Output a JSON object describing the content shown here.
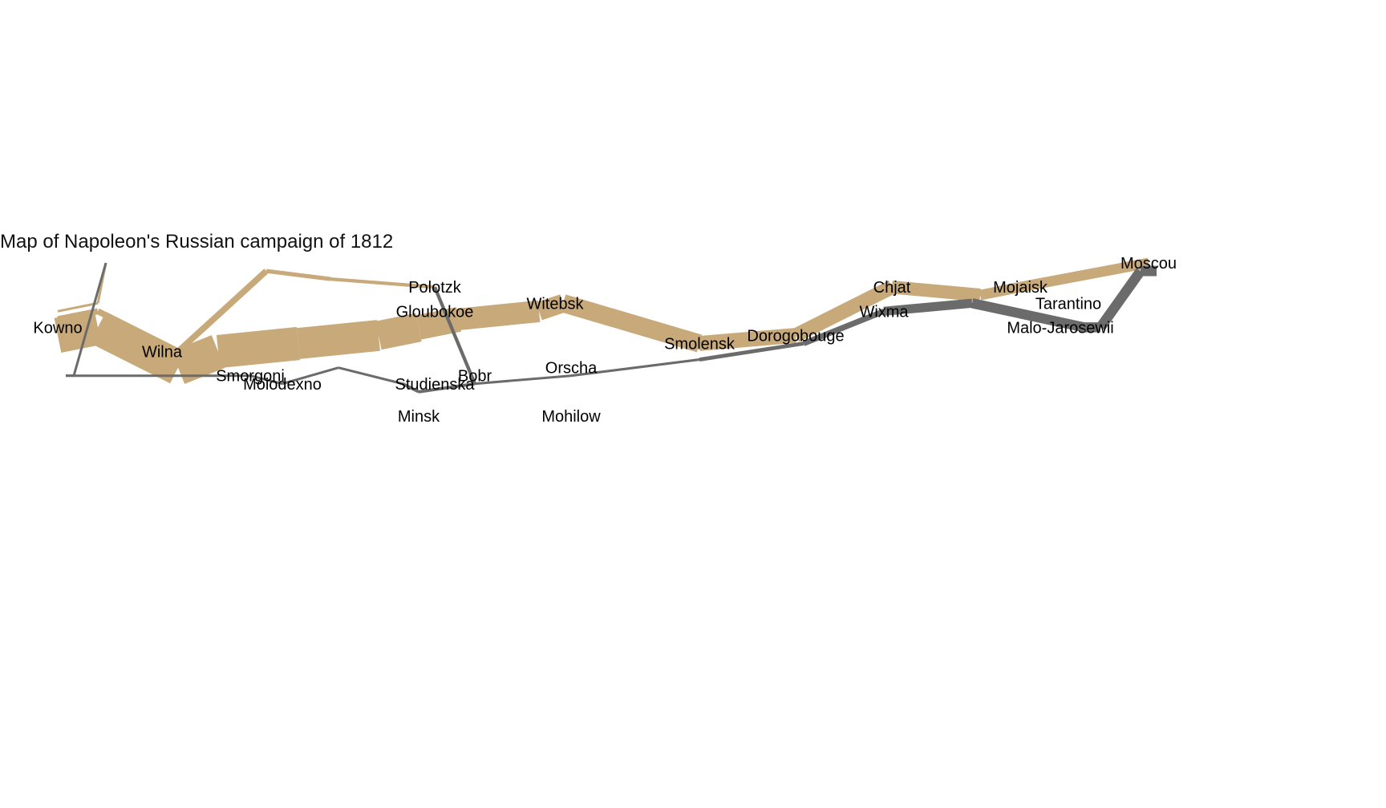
{
  "title": "Map of Napoleon's Russian campaign of 1812",
  "colors": {
    "advance": "#c8a97a",
    "retreat": "#6b6b6b"
  },
  "chart_data": {
    "type": "flow-map",
    "title": "Map of Napoleon's Russian campaign of 1812",
    "cities": [
      {
        "name": "Kowno",
        "lon": 24.0,
        "lat": 55.0
      },
      {
        "name": "Wilna",
        "lon": 25.3,
        "lat": 54.7
      },
      {
        "name": "Smorgoni",
        "lon": 26.4,
        "lat": 54.4
      },
      {
        "name": "Moiodexno",
        "lon": 26.8,
        "lat": 54.3
      },
      {
        "name": "Gloubokoe",
        "lon": 28.7,
        "lat": 55.2
      },
      {
        "name": "Minsk",
        "lon": 28.5,
        "lat": 53.9
      },
      {
        "name": "Studienska",
        "lon": 28.7,
        "lat": 54.3
      },
      {
        "name": "Polotzk",
        "lon": 28.7,
        "lat": 55.5
      },
      {
        "name": "Bobr",
        "lon": 29.2,
        "lat": 54.4
      },
      {
        "name": "Witebsk",
        "lon": 30.2,
        "lat": 55.3
      },
      {
        "name": "Orscha",
        "lon": 30.4,
        "lat": 54.5
      },
      {
        "name": "Mohilow",
        "lon": 30.4,
        "lat": 53.9
      },
      {
        "name": "Smolensk",
        "lon": 32.0,
        "lat": 54.8
      },
      {
        "name": "Dorogobouge",
        "lon": 33.2,
        "lat": 54.9
      },
      {
        "name": "Wixma",
        "lon": 34.3,
        "lat": 55.2
      },
      {
        "name": "Chjat",
        "lon": 34.4,
        "lat": 55.5
      },
      {
        "name": "Mojaisk",
        "lon": 36.0,
        "lat": 55.5
      },
      {
        "name": "Moscou",
        "lon": 37.6,
        "lat": 55.8
      },
      {
        "name": "Tarantino",
        "lon": 36.6,
        "lat": 55.3
      },
      {
        "name": "Malo-Jarosewii",
        "lon": 36.5,
        "lat": 55.0
      }
    ],
    "series": [
      {
        "group": 1,
        "direction": "A",
        "points": [
          {
            "lon": 24.0,
            "lat": 54.9,
            "survivors": 340000
          },
          {
            "lon": 24.5,
            "lat": 55.0,
            "survivors": 340000
          },
          {
            "lon": 25.5,
            "lat": 54.5,
            "survivors": 340000
          },
          {
            "lon": 26.0,
            "lat": 54.7,
            "survivors": 320000
          },
          {
            "lon": 27.0,
            "lat": 54.8,
            "survivors": 300000
          },
          {
            "lon": 28.0,
            "lat": 54.9,
            "survivors": 280000
          },
          {
            "lon": 28.5,
            "lat": 55.0,
            "survivors": 240000
          },
          {
            "lon": 29.0,
            "lat": 55.1,
            "survivors": 210000
          },
          {
            "lon": 30.0,
            "lat": 55.2,
            "survivors": 180000
          },
          {
            "lon": 30.3,
            "lat": 55.3,
            "survivors": 175000
          },
          {
            "lon": 32.0,
            "lat": 54.8,
            "survivors": 145000
          },
          {
            "lon": 33.2,
            "lat": 54.9,
            "survivors": 140000
          },
          {
            "lon": 34.4,
            "lat": 55.5,
            "survivors": 127100
          },
          {
            "lon": 35.5,
            "lat": 55.4,
            "survivors": 100000
          },
          {
            "lon": 36.0,
            "lat": 55.5,
            "survivors": 100000
          },
          {
            "lon": 37.6,
            "lat": 55.8,
            "survivors": 100000
          }
        ]
      },
      {
        "group": 1,
        "direction": "R",
        "points": [
          {
            "lon": 37.7,
            "lat": 55.7,
            "survivors": 100000
          },
          {
            "lon": 37.5,
            "lat": 55.7,
            "survivors": 98000
          },
          {
            "lon": 37.0,
            "lat": 55.0,
            "survivors": 97000
          },
          {
            "lon": 36.8,
            "lat": 55.0,
            "survivors": 96000
          },
          {
            "lon": 35.4,
            "lat": 55.3,
            "survivors": 87000
          },
          {
            "lon": 34.3,
            "lat": 55.2,
            "survivors": 55000
          },
          {
            "lon": 33.3,
            "lat": 54.8,
            "survivors": 37000
          },
          {
            "lon": 32.0,
            "lat": 54.6,
            "survivors": 24000
          },
          {
            "lon": 30.4,
            "lat": 54.4,
            "survivors": 20000
          },
          {
            "lon": 29.2,
            "lat": 54.3,
            "survivors": 20000
          },
          {
            "lon": 28.5,
            "lat": 54.2,
            "survivors": 20000
          },
          {
            "lon": 28.3,
            "lat": 54.3,
            "survivors": 20000
          },
          {
            "lon": 27.5,
            "lat": 54.5,
            "survivors": 20000
          },
          {
            "lon": 26.8,
            "lat": 54.3,
            "survivors": 12000
          },
          {
            "lon": 26.4,
            "lat": 54.4,
            "survivors": 14000
          },
          {
            "lon": 24.6,
            "lat": 54.4,
            "survivors": 8000
          },
          {
            "lon": 24.4,
            "lat": 54.4,
            "survivors": 4000
          },
          {
            "lon": 24.2,
            "lat": 54.4,
            "survivors": 4000
          },
          {
            "lon": 24.1,
            "lat": 54.4,
            "survivors": 4000
          }
        ]
      },
      {
        "group": 2,
        "direction": "A",
        "points": [
          {
            "lon": 24.0,
            "lat": 55.1,
            "survivors": 60000
          },
          {
            "lon": 24.5,
            "lat": 55.2,
            "survivors": 60000
          },
          {
            "lon": 25.5,
            "lat": 54.7,
            "survivors": 60000
          },
          {
            "lon": 26.6,
            "lat": 55.7,
            "survivors": 40000
          },
          {
            "lon": 27.4,
            "lat": 55.6,
            "survivors": 33000
          },
          {
            "lon": 28.7,
            "lat": 55.5,
            "survivors": 33000
          }
        ]
      },
      {
        "group": 2,
        "direction": "R",
        "points": [
          {
            "lon": 28.7,
            "lat": 55.5,
            "survivors": 33000
          },
          {
            "lon": 29.2,
            "lat": 54.3,
            "survivors": 30000
          },
          {
            "lon": 28.5,
            "lat": 54.2,
            "survivors": 30000
          },
          {
            "lon": 28.3,
            "lat": 54.3,
            "survivors": 28000
          }
        ]
      },
      {
        "group": 3,
        "direction": "A",
        "points": [
          {
            "lon": 24.0,
            "lat": 55.2,
            "survivors": 22000
          },
          {
            "lon": 24.5,
            "lat": 55.3,
            "survivors": 22000
          },
          {
            "lon": 24.6,
            "lat": 55.8,
            "survivors": 6000
          }
        ]
      },
      {
        "group": 3,
        "direction": "R",
        "points": [
          {
            "lon": 24.6,
            "lat": 55.8,
            "survivors": 6000
          },
          {
            "lon": 24.2,
            "lat": 54.4,
            "survivors": 6000
          },
          {
            "lon": 24.1,
            "lat": 54.4,
            "survivors": 6000
          }
        ]
      }
    ]
  }
}
